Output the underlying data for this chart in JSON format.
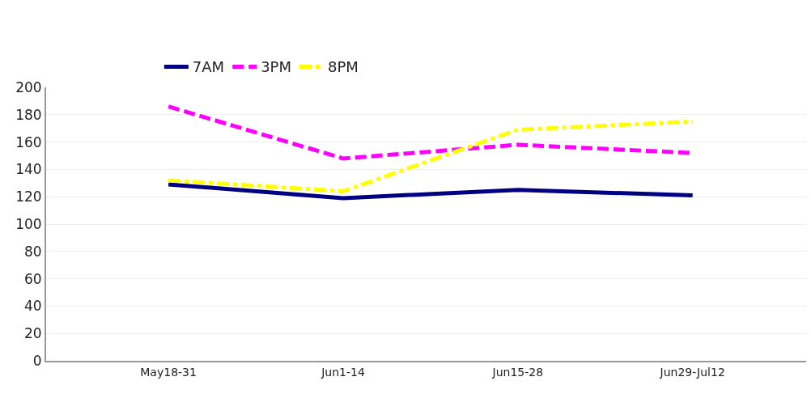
{
  "chart_data": {
    "type": "line",
    "categories": [
      "May18-31",
      "Jun1-14",
      "Jun15-28",
      "Jun29-Jul12"
    ],
    "series": [
      {
        "name": "7AM",
        "color": "#000080",
        "values": [
          129,
          119,
          125,
          121
        ],
        "line_style": "solid"
      },
      {
        "name": "3PM",
        "color": "#ff00ff",
        "values": [
          186,
          148,
          158,
          152
        ],
        "line_style": "dashed"
      },
      {
        "name": "8PM",
        "color": "#ffff00",
        "values": [
          132,
          124,
          169,
          175
        ],
        "line_style": "dashdot"
      }
    ],
    "ylim": [
      0,
      200
    ],
    "yticks": [
      0,
      20,
      40,
      60,
      80,
      100,
      120,
      140,
      160,
      180,
      200
    ],
    "grid": "y",
    "legend": "top",
    "marker": "none"
  }
}
